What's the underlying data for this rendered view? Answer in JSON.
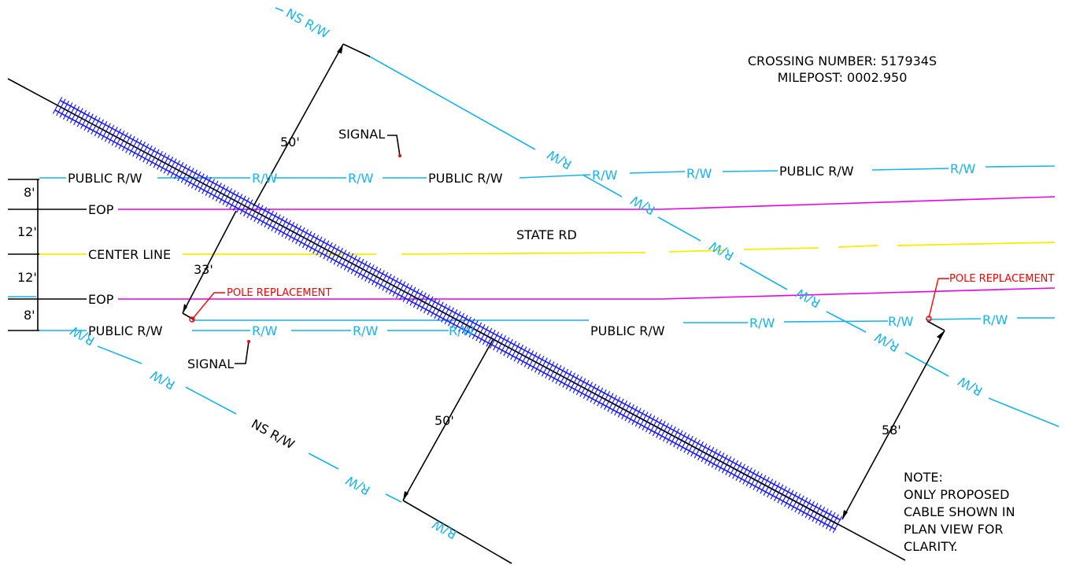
{
  "header": {
    "crossing_number": "CROSSING NUMBER: 517934S",
    "milepost": "MILEPOST: 0002.950"
  },
  "road": {
    "name": "STATE RD",
    "public_rw": "PUBLIC R/W",
    "rw": "R/W",
    "eop": "EOP",
    "center_line": "CENTER LINE"
  },
  "railroad": {
    "ns_rw": "NS R/W",
    "rw": "R/W"
  },
  "dimensions": {
    "offset_top": "8'",
    "lane_top": "12'",
    "lane_bottom": "12'",
    "offset_bottom": "8'",
    "dim_50_upper": "50'",
    "dim_33": "33'",
    "dim_50_lower": "50'",
    "dim_58": "58'"
  },
  "callouts": {
    "signal_upper": "SIGNAL",
    "signal_lower": "SIGNAL",
    "pole_replacement_left": "POLE REPLACEMENT",
    "pole_replacement_right": "POLE REPLACEMENT"
  },
  "note": {
    "lines": [
      "NOTE:",
      "ONLY PROPOSED",
      "CABLE SHOWN IN",
      "PLAN VIEW FOR",
      "CLARITY."
    ]
  },
  "colors": {
    "right_of_way": "#16b4ea",
    "edge_of_pavement": "#e800e8",
    "center_line": "#f0f000",
    "track": "#1a1aff",
    "callout": "#ff0000",
    "linework": "#000000"
  }
}
